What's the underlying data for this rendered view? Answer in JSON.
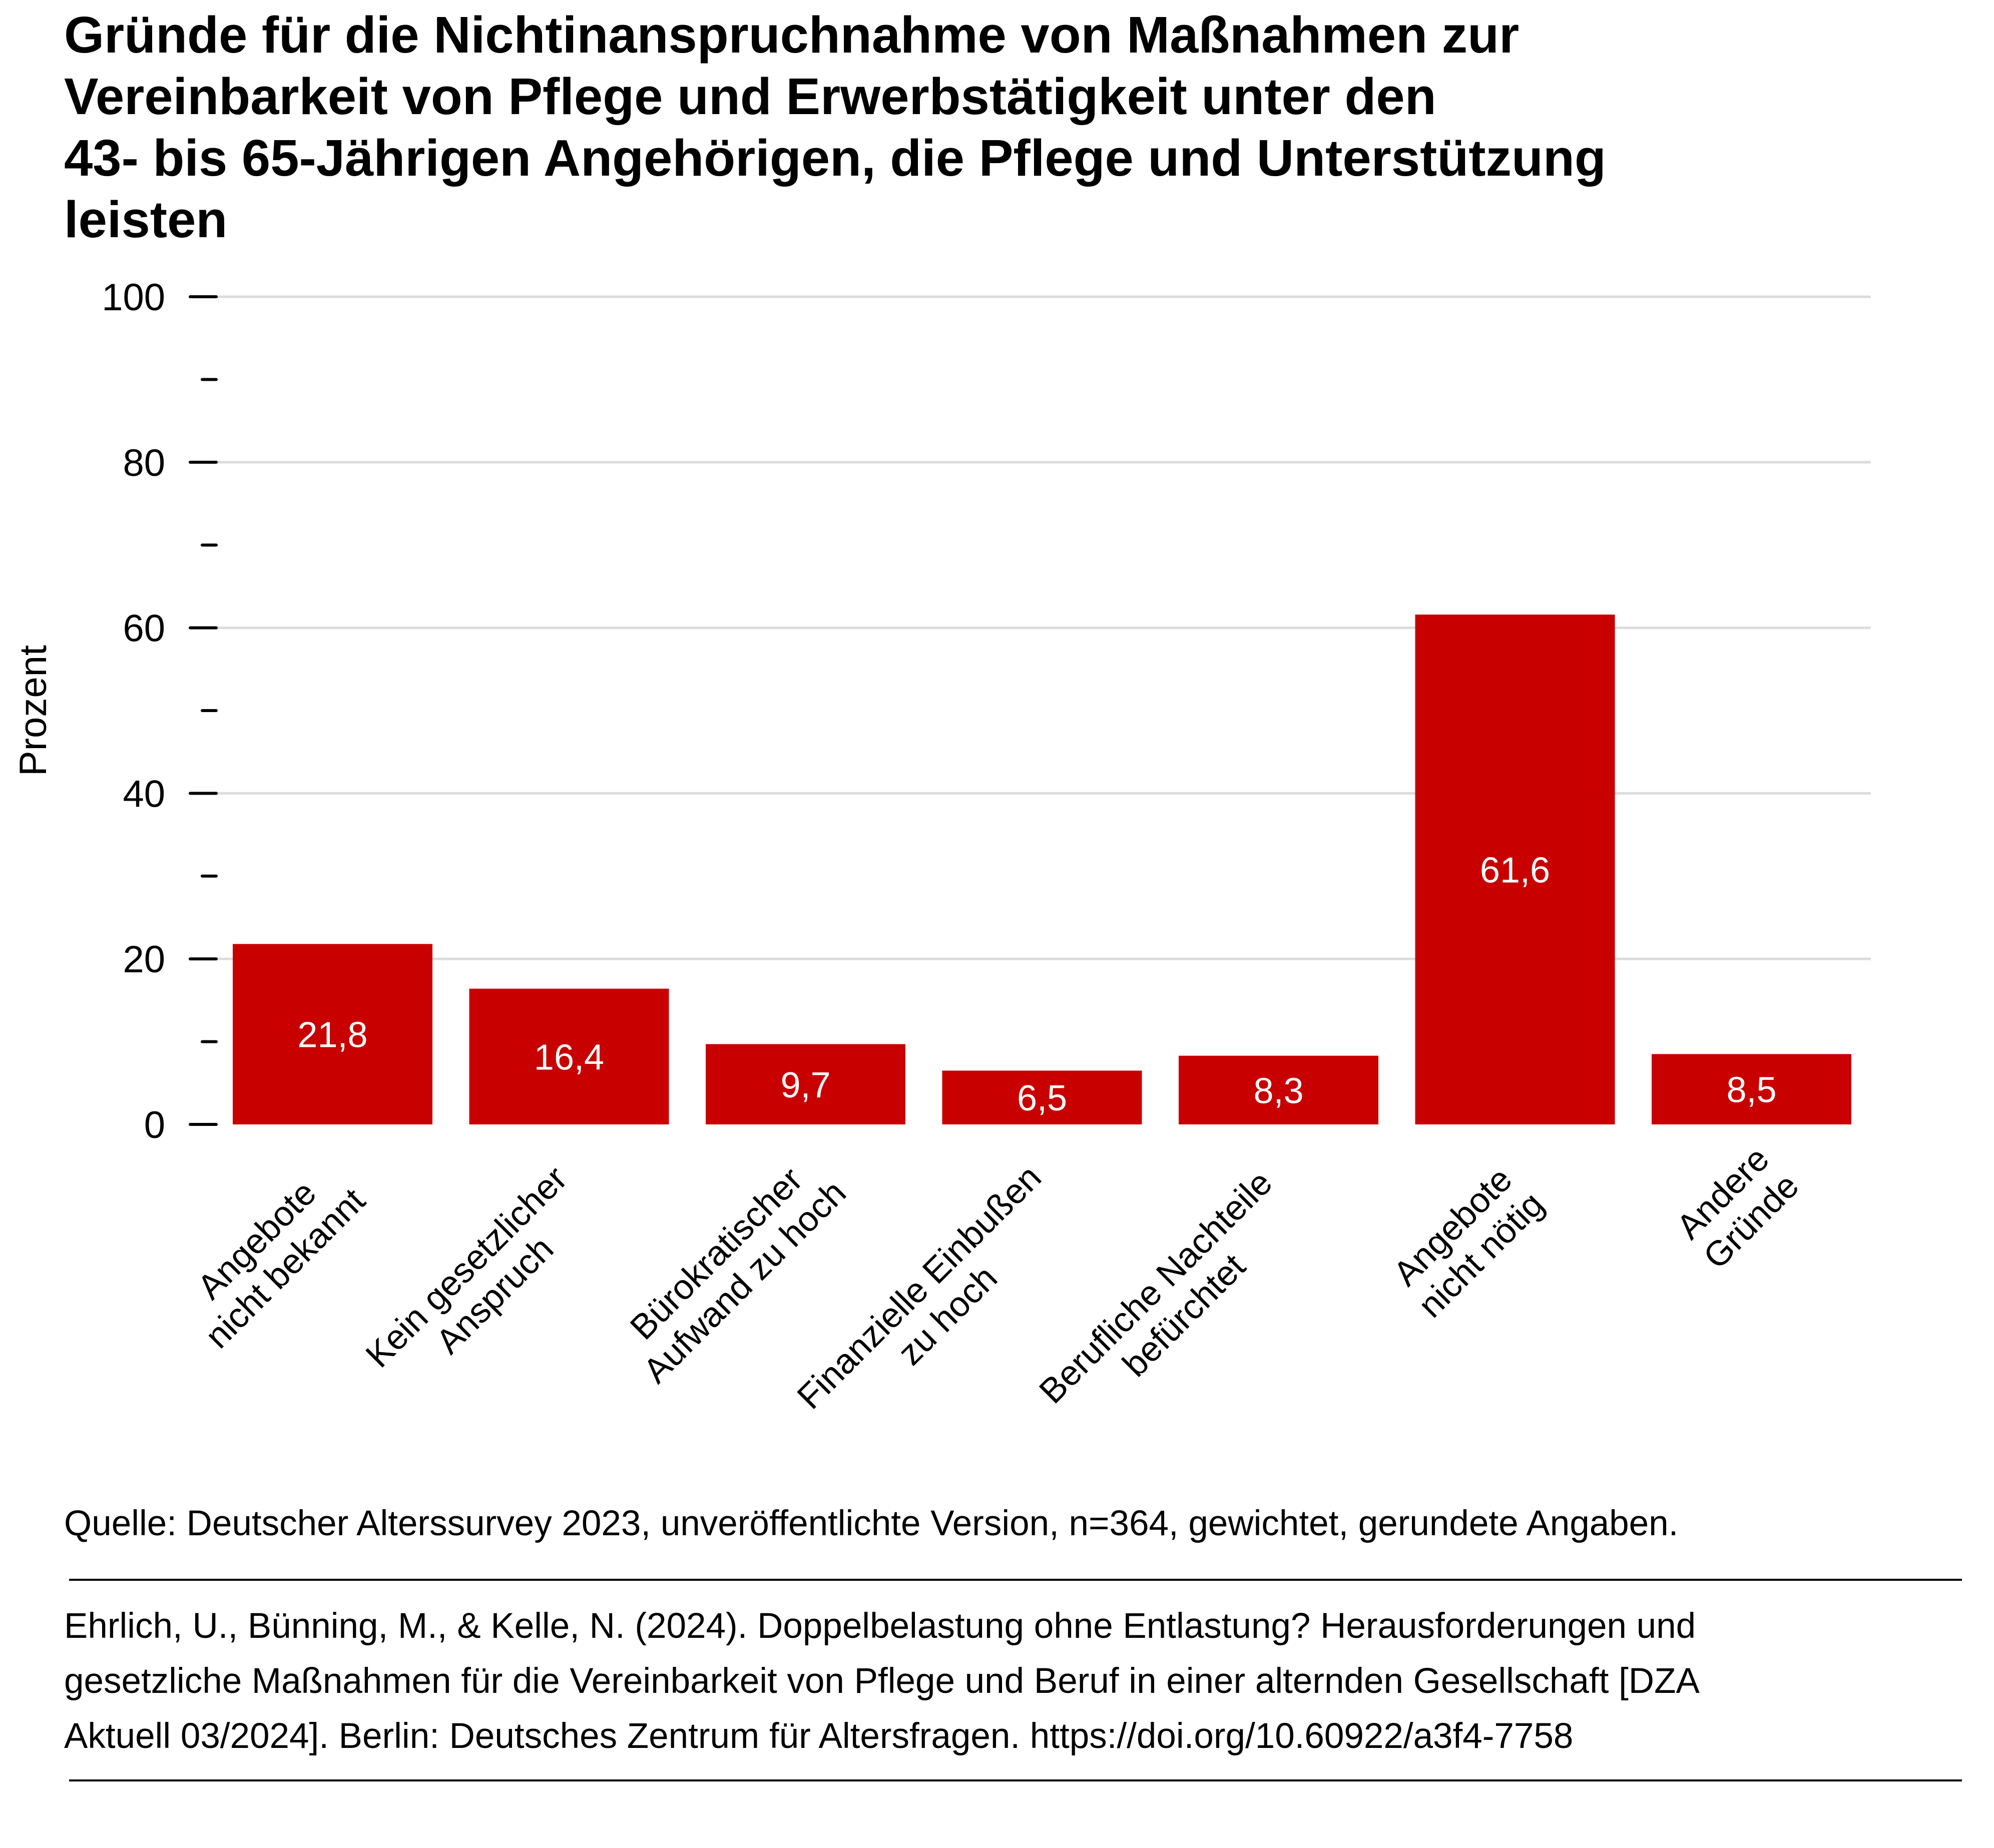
{
  "title": {
    "lines": [
      "Gründe für die Nichtinanspruchnahme von Maßnahmen zur",
      "Vereinbarkeit von Pflege und Erwerbstätigkeit unter den",
      "43- bis 65-Jährigen Angehörigen, die Pflege und Unterstützung",
      "leisten"
    ]
  },
  "colors": {
    "bar": "#C80000",
    "grid": "#DCDCDC",
    "axis": "#000000"
  },
  "chart_data": {
    "type": "bar",
    "title": "Gründe für die Nichtinanspruchnahme von Maßnahmen zur Vereinbarkeit von Pflege und Erwerbstätigkeit unter den 43- bis 65-Jährigen Angehörigen, die Pflege und Unterstützung leisten",
    "xlabel": "",
    "ylabel": "Prozent",
    "ylim": [
      0,
      100
    ],
    "yticks": [
      0,
      20,
      40,
      60,
      80,
      100
    ],
    "ytick_labels": [
      "0",
      "20",
      "40",
      "60",
      "80",
      "100"
    ],
    "yminor_ticks": [
      10,
      30,
      50,
      70,
      90
    ],
    "grid": true,
    "categories": [
      [
        "Angebote",
        "nicht bekannt"
      ],
      [
        "Kein gesetzlicher",
        "Anspruch"
      ],
      [
        "Bürokratischer",
        "Aufwand zu hoch"
      ],
      [
        "Finanzielle Einbußen",
        "zu hoch"
      ],
      [
        "Berufliche Nachteile",
        "befürchtet"
      ],
      [
        "Angebote",
        "nicht nötig"
      ],
      [
        "Andere",
        "Gründe"
      ]
    ],
    "values": [
      21.8,
      16.4,
      9.7,
      6.5,
      8.3,
      61.6,
      8.5
    ],
    "value_labels": [
      "21,8",
      "16,4",
      "9,7",
      "6,5",
      "8,3",
      "61,6",
      "8,5"
    ]
  },
  "footer": {
    "source": "Quelle: Deutscher Alterssurvey 2023, unveröffentlichte Version, n=364, gewichtet, gerundete Angaben.",
    "citation_lines": [
      "Ehrlich, U., Bünning, M., & Kelle, N. (2024). Doppelbelastung ohne Entlastung? Herausforderungen und",
      "gesetzliche Maßnahmen für die Vereinbarkeit von Pflege und Beruf in einer alternden Gesellschaft [DZA",
      "Aktuell 03/2024]. Berlin: Deutsches Zentrum für Altersfragen. https://doi.org/10.60922/a3f4-7758"
    ]
  }
}
